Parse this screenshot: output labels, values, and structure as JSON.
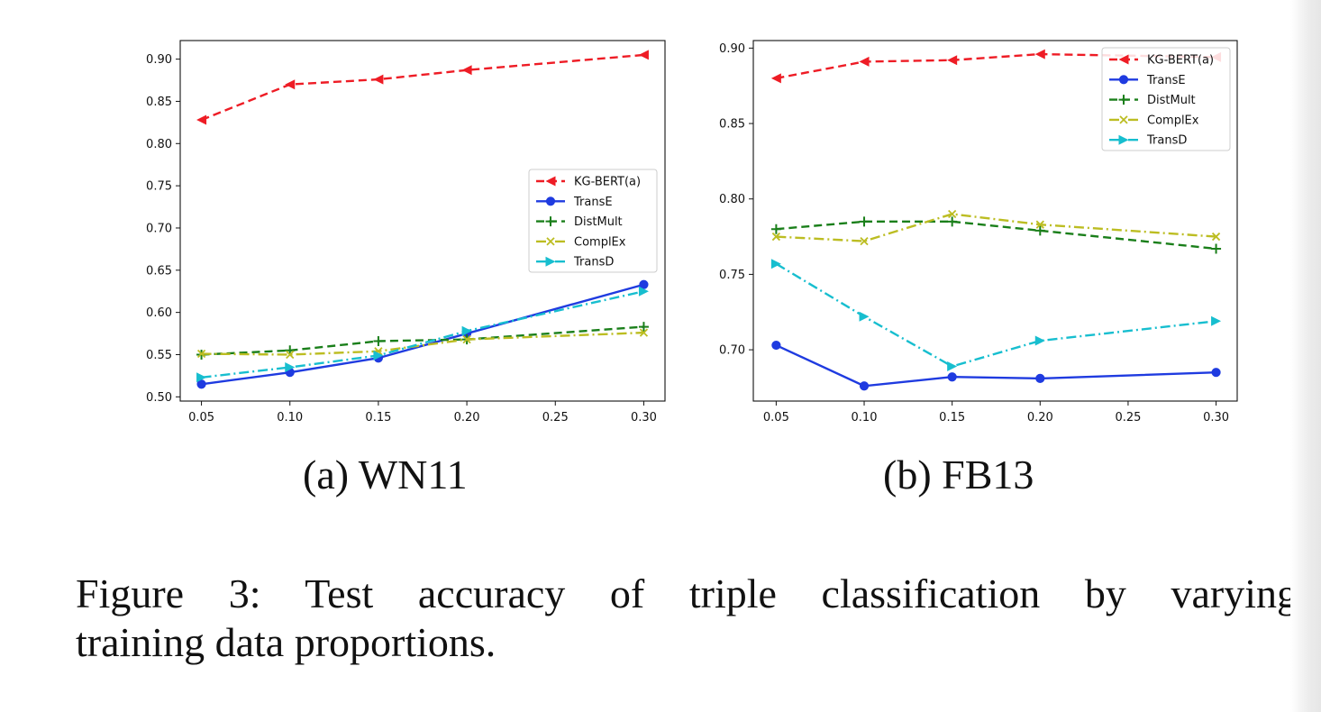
{
  "chart_data": [
    {
      "type": "line",
      "subcaption": "(a) WN11",
      "x": [
        0.05,
        0.1,
        0.15,
        0.2,
        0.3
      ],
      "xticks": [
        "0.05",
        "0.10",
        "0.15",
        "0.20",
        "0.25",
        "0.30"
      ],
      "xtick_values": [
        0.05,
        0.1,
        0.15,
        0.2,
        0.25,
        0.3
      ],
      "yticks": [
        "0.50",
        "0.55",
        "0.60",
        "0.65",
        "0.70",
        "0.75",
        "0.80",
        "0.85",
        "0.90"
      ],
      "ytick_values": [
        0.5,
        0.55,
        0.6,
        0.65,
        0.7,
        0.75,
        0.8,
        0.85,
        0.9
      ],
      "xlim": [
        0.038,
        0.312
      ],
      "ylim": [
        0.495,
        0.922
      ],
      "legend_position": "center-right",
      "series": [
        {
          "name": "KG-BERT(a)",
          "color": "#ee1c25",
          "dash": "dashed",
          "marker": "tri-left",
          "values": [
            0.828,
            0.87,
            0.876,
            0.887,
            0.905
          ]
        },
        {
          "name": "TransE",
          "color": "#1f3be0",
          "dash": "solid",
          "marker": "circle",
          "values": [
            0.515,
            0.529,
            0.546,
            0.575,
            0.633
          ]
        },
        {
          "name": "DistMult",
          "color": "#1a7f1a",
          "dash": "dashed",
          "marker": "plus",
          "values": [
            0.55,
            0.555,
            0.566,
            0.568,
            0.583
          ]
        },
        {
          "name": "ComplEx",
          "color": "#bcbd22",
          "dash": "dashdot",
          "marker": "x",
          "values": [
            0.551,
            0.55,
            0.554,
            0.568,
            0.576
          ]
        },
        {
          "name": "TransD",
          "color": "#17becf",
          "dash": "dashdot",
          "marker": "tri-right",
          "values": [
            0.523,
            0.535,
            0.549,
            0.578,
            0.625
          ]
        }
      ]
    },
    {
      "type": "line",
      "subcaption": "(b) FB13",
      "x": [
        0.05,
        0.1,
        0.15,
        0.2,
        0.3
      ],
      "xticks": [
        "0.05",
        "0.10",
        "0.15",
        "0.20",
        "0.25",
        "0.30"
      ],
      "xtick_values": [
        0.05,
        0.1,
        0.15,
        0.2,
        0.25,
        0.3
      ],
      "yticks": [
        "0.70",
        "0.75",
        "0.80",
        "0.85",
        "0.90"
      ],
      "ytick_values": [
        0.7,
        0.75,
        0.8,
        0.85,
        0.9
      ],
      "xlim": [
        0.037,
        0.312
      ],
      "ylim": [
        0.666,
        0.905
      ],
      "legend_position": "top-right",
      "series": [
        {
          "name": "KG-BERT(a)",
          "color": "#ee1c25",
          "dash": "dashed",
          "marker": "tri-left",
          "values": [
            0.88,
            0.891,
            0.892,
            0.896,
            0.894
          ]
        },
        {
          "name": "TransE",
          "color": "#1f3be0",
          "dash": "solid",
          "marker": "circle",
          "values": [
            0.703,
            0.676,
            0.682,
            0.681,
            0.685
          ]
        },
        {
          "name": "DistMult",
          "color": "#1a7f1a",
          "dash": "dashed",
          "marker": "plus",
          "values": [
            0.78,
            0.785,
            0.785,
            0.779,
            0.767
          ]
        },
        {
          "name": "ComplEx",
          "color": "#bcbd22",
          "dash": "dashdot",
          "marker": "x",
          "values": [
            0.775,
            0.772,
            0.79,
            0.783,
            0.775
          ]
        },
        {
          "name": "TransD",
          "color": "#17becf",
          "dash": "dashdot",
          "marker": "tri-right",
          "values": [
            0.757,
            0.722,
            0.689,
            0.706,
            0.719
          ]
        }
      ]
    }
  ],
  "caption": {
    "line1": "Figure 3: Test accuracy of triple classification by varying",
    "line2": "training data proportions."
  }
}
